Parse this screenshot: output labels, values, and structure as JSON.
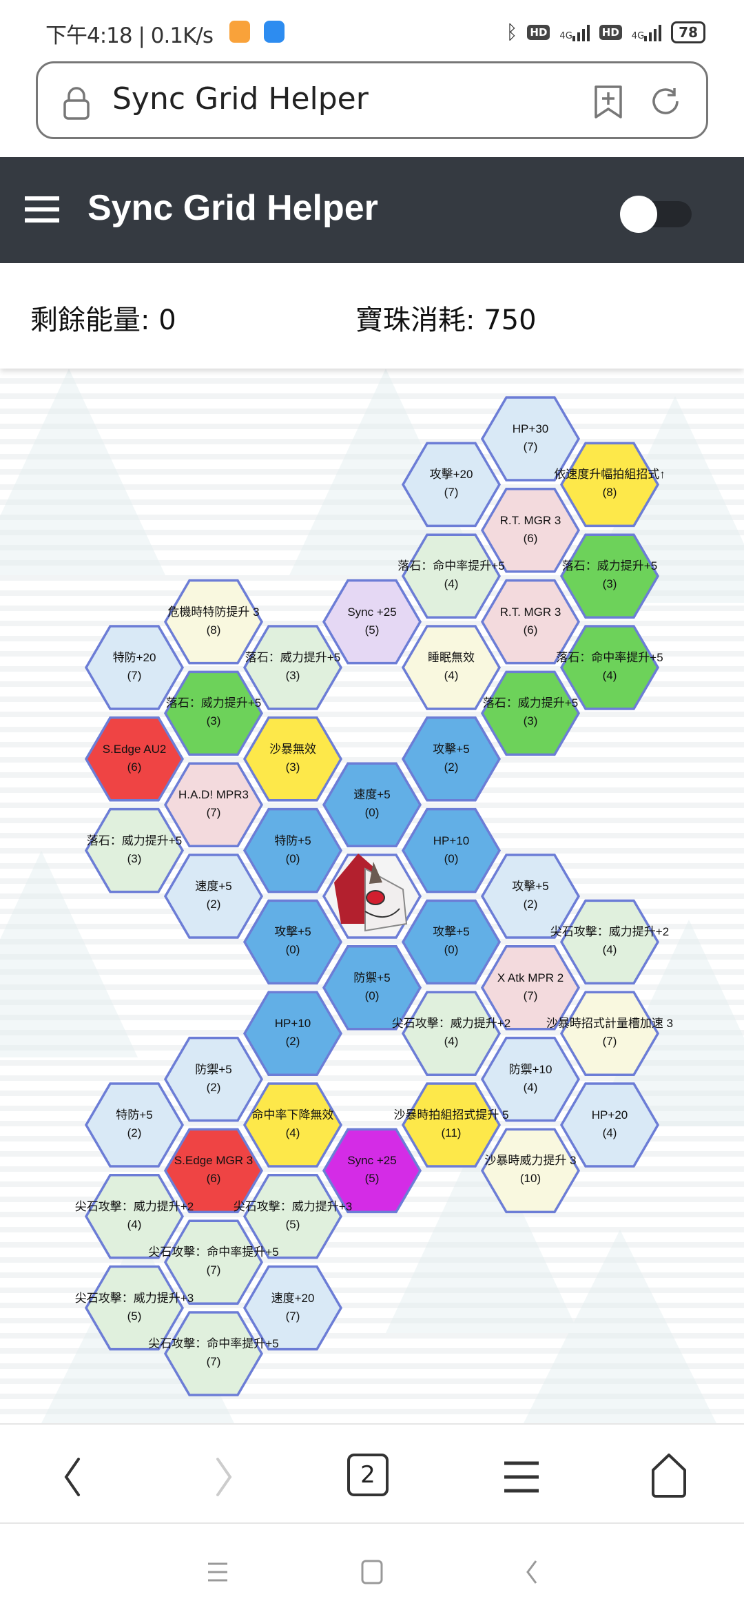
{
  "status_bar": {
    "time": "下午4:18 | 0.1K/s",
    "network_1": "4G",
    "network_2": "4G",
    "hd_1": "HD",
    "hd_2": "HD",
    "battery": "78"
  },
  "url_bar": {
    "title": "Sync Grid Helper"
  },
  "header": {
    "title": "Sync Grid Helper",
    "toggle_on": false
  },
  "stats": {
    "remaining_energy": "剩餘能量: 0",
    "gem_cost": "寶珠消耗: 750"
  },
  "colors": {
    "blue": "#62afe6",
    "red": "#ef4444",
    "yellow": "#fde84a",
    "green": "#6dd25a",
    "lightblue": "#d9e9f6",
    "lightgreen": "#e0f0dd",
    "pink": "#f3dadd",
    "lightyellow": "#f9f8df",
    "lavender": "#e5d8f4",
    "magenta": "#d42ce6",
    "border": "#6c7dd6",
    "header_bg": "#353a41"
  },
  "hexes": [
    {
      "label": "HP+30",
      "cost": "(7)",
      "color": "lightblue"
    },
    {
      "label": "攻擊+20",
      "cost": "(7)",
      "color": "lightblue"
    },
    {
      "label": "依速度升幅拍組招式↑",
      "cost": "(8)",
      "color": "yellow"
    },
    {
      "label": "R.T. MGR 3",
      "cost": "(6)",
      "color": "pink"
    },
    {
      "label": "落石：命中率提升+5",
      "cost": "(4)",
      "color": "lightgreen"
    },
    {
      "label": "落石：威力提升+5",
      "cost": "(3)",
      "color": "green"
    },
    {
      "label": "Sync +25",
      "cost": "(5)",
      "color": "lavender"
    },
    {
      "label": "R.T. MGR 3",
      "cost": "(6)",
      "color": "pink"
    },
    {
      "label": "危機時特防提升 3",
      "cost": "(8)",
      "color": "lightyellow"
    },
    {
      "label": "特防+20",
      "cost": "(7)",
      "color": "lightblue"
    },
    {
      "label": "落石：威力提升+5",
      "cost": "(3)",
      "color": "lightgreen"
    },
    {
      "label": "睡眠無效",
      "cost": "(4)",
      "color": "lightyellow"
    },
    {
      "label": "落石：命中率提升+5",
      "cost": "(4)",
      "color": "green"
    },
    {
      "label": "落石：威力提升+5",
      "cost": "(3)",
      "color": "green"
    },
    {
      "label": "落石：威力提升+5",
      "cost": "(3)",
      "color": "green"
    },
    {
      "label": "S.Edge AU2",
      "cost": "(6)",
      "color": "red"
    },
    {
      "label": "沙暴無效",
      "cost": "(3)",
      "color": "yellow"
    },
    {
      "label": "攻擊+5",
      "cost": "(2)",
      "color": "blue"
    },
    {
      "label": "H.A.D! MPR3",
      "cost": "(7)",
      "color": "pink"
    },
    {
      "label": "速度+5",
      "cost": "(0)",
      "color": "blue"
    },
    {
      "label": "落石：威力提升+5",
      "cost": "(3)",
      "color": "lightgreen"
    },
    {
      "label": "特防+5",
      "cost": "(0)",
      "color": "blue"
    },
    {
      "label": "HP+10",
      "cost": "(0)",
      "color": "blue"
    },
    {
      "label": "速度+5",
      "cost": "(2)",
      "color": "lightblue"
    },
    {
      "label": "攻擊+5",
      "cost": "(2)",
      "color": "lightblue"
    },
    {
      "label": "攻擊+5",
      "cost": "(0)",
      "color": "blue"
    },
    {
      "label": "攻擊+5",
      "cost": "(0)",
      "color": "blue"
    },
    {
      "label": "尖石攻擊：威力提升+2",
      "cost": "(4)",
      "color": "lightgreen"
    },
    {
      "label": "防禦+5",
      "cost": "(0)",
      "color": "blue"
    },
    {
      "label": "X Atk MPR 2",
      "cost": "(7)",
      "color": "pink"
    },
    {
      "label": "HP+10",
      "cost": "(2)",
      "color": "blue"
    },
    {
      "label": "尖石攻擊：威力提升+2",
      "cost": "(4)",
      "color": "lightgreen"
    },
    {
      "label": "沙暴時招式計量槽加速 3",
      "cost": "(7)",
      "color": "lightyellow"
    },
    {
      "label": "防禦+5",
      "cost": "(2)",
      "color": "lightblue"
    },
    {
      "label": "防禦+10",
      "cost": "(4)",
      "color": "lightblue"
    },
    {
      "label": "特防+5",
      "cost": "(2)",
      "color": "lightblue"
    },
    {
      "label": "命中率下降無效",
      "cost": "(4)",
      "color": "yellow"
    },
    {
      "label": "沙暴時拍組招式提升 5",
      "cost": "(11)",
      "color": "yellow"
    },
    {
      "label": "HP+20",
      "cost": "(4)",
      "color": "lightblue"
    },
    {
      "label": "S.Edge MGR 3",
      "cost": "(6)",
      "color": "red"
    },
    {
      "label": "Sync +25",
      "cost": "(5)",
      "color": "magenta"
    },
    {
      "label": "沙暴時威力提升 3",
      "cost": "(10)",
      "color": "lightyellow"
    },
    {
      "label": "尖石攻擊：威力提升+2",
      "cost": "(4)",
      "color": "lightgreen"
    },
    {
      "label": "尖石攻擊：威力提升+3",
      "cost": "(5)",
      "color": "lightgreen"
    },
    {
      "label": "尖石攻擊：命中率提升+5",
      "cost": "(7)",
      "color": "lightgreen"
    },
    {
      "label": "尖石攻擊：威力提升+3",
      "cost": "(5)",
      "color": "lightgreen"
    },
    {
      "label": "速度+20",
      "cost": "(7)",
      "color": "lightblue"
    },
    {
      "label": "尖石攻擊：命中率提升+5",
      "cost": "(7)",
      "color": "lightgreen"
    }
  ],
  "center_icon": "pokemon-portrait",
  "browser_nav": {
    "back": "chevron-left-icon",
    "forward": "chevron-right-icon",
    "tabs_count": "2",
    "menu": "menu-icon",
    "home": "home-icon"
  },
  "system_nav": [
    "recents-icon",
    "home-square-icon",
    "back-icon"
  ]
}
